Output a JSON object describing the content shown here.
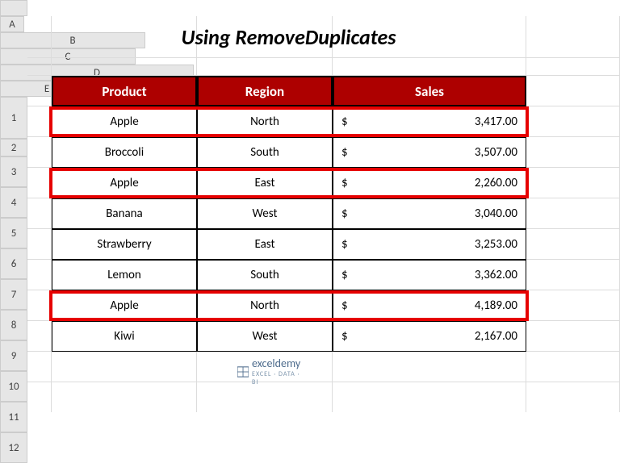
{
  "layout": {
    "row_header_w": 34,
    "col_header_h": 20,
    "cols": {
      "A": 30,
      "B": 180,
      "C": 168,
      "D": 240,
      "E": 116
    },
    "row_heights": {
      "1": 52,
      "2": 22,
      "default": 38
    },
    "total_rows": 12
  },
  "title": {
    "text": "Using RemoveDuplicates",
    "span": "B1:D1"
  },
  "table": {
    "header_row": 3,
    "columns": [
      {
        "col": "B",
        "label": "Product"
      },
      {
        "col": "C",
        "label": "Region"
      },
      {
        "col": "D",
        "label": "Sales"
      }
    ],
    "rows": [
      {
        "product": "Apple",
        "region": "North",
        "sales": "3,417.00",
        "highlight": true
      },
      {
        "product": "Broccoli",
        "region": "South",
        "sales": "3,507.00",
        "highlight": false
      },
      {
        "product": "Apple",
        "region": "East",
        "sales": "2,260.00",
        "highlight": true
      },
      {
        "product": "Banana",
        "region": "West",
        "sales": "3,040.00",
        "highlight": false
      },
      {
        "product": "Strawberry",
        "region": "East",
        "sales": "3,253.00",
        "highlight": false
      },
      {
        "product": "Lemon",
        "region": "South",
        "sales": "3,362.00",
        "highlight": false
      },
      {
        "product": "Apple",
        "region": "North",
        "sales": "4,189.00",
        "highlight": true
      },
      {
        "product": "Kiwi",
        "region": "West",
        "sales": "2,167.00",
        "highlight": false
      }
    ]
  },
  "currency": "$",
  "brand": {
    "name": "exceldemy",
    "tagline": "EXCEL · DATA · BI"
  },
  "colors": {
    "header_bg": "#ad0000",
    "highlight": "#e60000",
    "grid_gray": "#dcdcdc",
    "col_header_bg": "#e6e6e6"
  }
}
